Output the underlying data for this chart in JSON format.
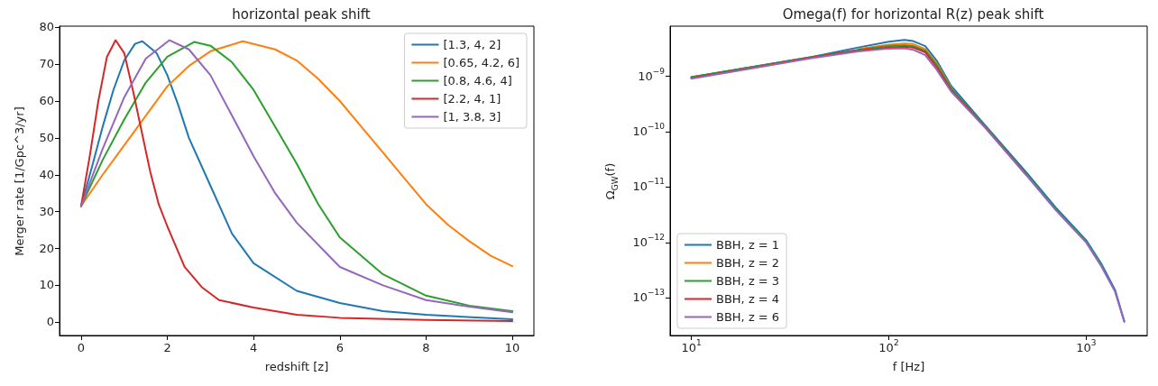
{
  "chart_data": [
    {
      "type": "line",
      "title": "horizontal peak shift",
      "xlabel": "redshift [z]",
      "ylabel": "Merger rate [1/Gpc^3/yr]",
      "xlim": [
        -0.5,
        10.5
      ],
      "xticks": [
        0,
        2,
        4,
        6,
        8,
        10
      ],
      "ylim": [
        -3.6,
        80.3
      ],
      "yticks": [
        0,
        10,
        20,
        30,
        40,
        50,
        60,
        70,
        80
      ],
      "grid": false,
      "legend": "top right",
      "line_style": "solid",
      "series": [
        {
          "name": "[1.3, 4, 2]",
          "color": "#1f77b4",
          "x": [
            0,
            0.25,
            0.5,
            0.75,
            1,
            1.25,
            1.42,
            1.75,
            2,
            2.25,
            2.5,
            3,
            3.5,
            4,
            5,
            6,
            7,
            8,
            10
          ],
          "values": [
            31.5,
            42,
            53,
            63,
            71,
            75.5,
            76.2,
            73,
            67,
            59,
            50,
            37,
            24,
            16,
            8.5,
            5.2,
            3,
            2,
            0.8
          ]
        },
        {
          "name": "[0.65, 4.2, 6]",
          "color": "#ff7f0e",
          "x": [
            0,
            0.5,
            1,
            1.5,
            2,
            2.5,
            3,
            3.75,
            4.5,
            5,
            5.5,
            6,
            6.5,
            7,
            7.5,
            8,
            8.5,
            9,
            9.5,
            10
          ],
          "values": [
            31.5,
            40,
            48,
            56,
            64,
            69.5,
            73.5,
            76.2,
            74,
            71,
            66,
            60,
            53,
            46,
            39,
            32,
            26.5,
            22,
            18,
            15.2
          ]
        },
        {
          "name": "[0.8, 4.6, 4]",
          "color": "#2ca02c",
          "x": [
            0,
            0.5,
            1,
            1.5,
            2,
            2.62,
            3,
            3.5,
            4,
            4.5,
            5,
            5.5,
            6,
            7,
            8,
            9,
            10
          ],
          "values": [
            31.5,
            44,
            55,
            65,
            72,
            76,
            75,
            70.5,
            63,
            53,
            43,
            32,
            23,
            13,
            7.2,
            4.5,
            3
          ]
        },
        {
          "name": "[2.2, 4, 1]",
          "color": "#d62728",
          "x": [
            0,
            0.2,
            0.4,
            0.6,
            0.8,
            1,
            1.2,
            1.4,
            1.6,
            1.8,
            2,
            2.4,
            2.8,
            3.2,
            4,
            5,
            6,
            8,
            10
          ],
          "values": [
            31.5,
            45,
            60,
            72,
            76.5,
            73,
            63,
            52,
            41,
            32,
            26,
            15,
            9.5,
            6,
            4,
            2,
            1.2,
            0.6,
            0.3
          ]
        },
        {
          "name": "[1, 3.8, 3]",
          "color": "#9467bd",
          "x": [
            0,
            0.5,
            1,
            1.5,
            2.05,
            2.5,
            3,
            3.5,
            4,
            4.5,
            5,
            6,
            7,
            8,
            9,
            10
          ],
          "values": [
            31.5,
            47,
            61,
            71.5,
            76.5,
            74,
            67,
            56,
            45,
            35,
            27,
            15,
            10,
            6,
            4.2,
            2.7
          ]
        }
      ]
    },
    {
      "type": "line",
      "title": "Omega(f) for horizontal R(z) peak shift",
      "xlabel": "f [Hz]",
      "ylabel": "Ω$_{GW}$(f)",
      "log": "xy",
      "xlim": [
        7.8,
        2037
      ],
      "xticks": [
        {
          "value": 10,
          "label": "10$^{1}$"
        },
        {
          "value": 100,
          "label": "10$^{2}$"
        },
        {
          "value": 1000,
          "label": "10$^{3}$"
        }
      ],
      "ylim": [
        2.1e-14,
        8e-09
      ],
      "yticks": [
        {
          "value": 1e-13,
          "label": "10$^{−13}$"
        },
        {
          "value": 1e-12,
          "label": "10$^{−12}$"
        },
        {
          "value": 1e-11,
          "label": "10$^{−11}$"
        },
        {
          "value": 1e-10,
          "label": "10$^{−10}$"
        },
        {
          "value": 1e-09,
          "label": "10$^{−9}$"
        }
      ],
      "grid": false,
      "legend": "bottom left",
      "line_style": "solid",
      "x": [
        10,
        20,
        40,
        70,
        100,
        120,
        133,
        153,
        175,
        207,
        300,
        500,
        700,
        1000,
        1200,
        1400,
        1560
      ],
      "series": [
        {
          "name": "BBH, z = 1",
          "color": "#1f77b4",
          "values": [
            9.6e-10,
            1.45e-09,
            2.2e-09,
            3.3e-09,
            4.2e-09,
            4.5e-09,
            4.3e-09,
            3.5e-09,
            1.9e-09,
            6.7e-10,
            1.45e-10,
            1.8e-11,
            4.3e-12,
            1.1e-12,
            4e-13,
            1.4e-13,
            3.8e-14
          ]
        },
        {
          "name": "BBH, z = 2",
          "color": "#ff7f0e",
          "values": [
            null,
            null,
            null,
            3.1e-09,
            3.7e-09,
            3.9e-09,
            3.8e-09,
            3.1e-09,
            1.7e-09,
            6.2e-10,
            null,
            null,
            null,
            null,
            null,
            null,
            null
          ]
        },
        {
          "name": "BBH, z = 3",
          "color": "#2ca02c",
          "values": [
            9.6e-10,
            1.45e-09,
            2.2e-09,
            3e-09,
            3.5e-09,
            3.6e-09,
            3.5e-09,
            2.9e-09,
            1.6e-09,
            6e-10,
            1.38e-10,
            1.68e-11,
            4e-12,
            1.03e-12,
            3.8e-13,
            null,
            null
          ]
        },
        {
          "name": "BBH, z = 4",
          "color": "#d62728",
          "values": [
            9.3e-10,
            1.4e-09,
            2.15e-09,
            2.9e-09,
            3.3e-09,
            3.4e-09,
            3.3e-09,
            2.7e-09,
            1.45e-09,
            5.6e-10,
            1.33e-10,
            1.62e-11,
            null,
            null,
            null,
            null,
            null
          ]
        },
        {
          "name": "BBH, z = 6",
          "color": "#9467bd",
          "values": [
            9e-10,
            1.38e-09,
            2.1e-09,
            2.8e-09,
            3.15e-09,
            3.2e-09,
            3e-09,
            2.4e-09,
            1.3e-09,
            5.3e-10,
            1.3e-10,
            1.6e-11,
            3.85e-12,
            1e-12,
            3.6e-13,
            1.3e-13,
            3.7e-14
          ]
        }
      ]
    }
  ]
}
